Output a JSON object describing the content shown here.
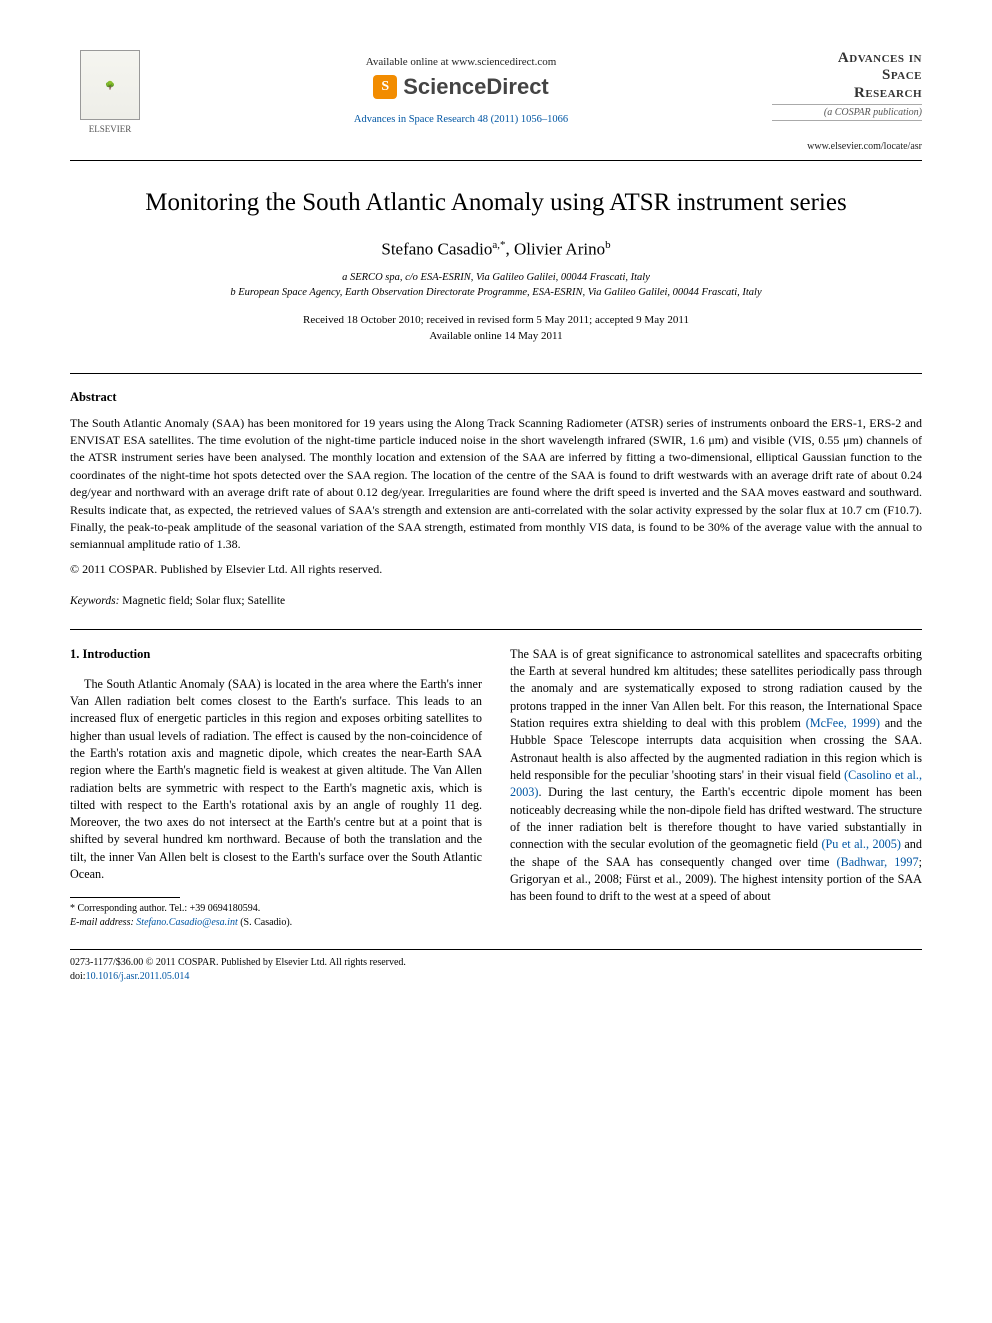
{
  "header": {
    "elsevier_label": "ELSEVIER",
    "available_online": "Available online at www.sciencedirect.com",
    "sciencedirect": "ScienceDirect",
    "journal_ref": "Advances in Space Research 48 (2011) 1056–1066",
    "journal_title_l1": "Advances in",
    "journal_title_l2": "Space",
    "journal_title_l3": "Research",
    "cospar": "(a COSPAR publication)",
    "journal_url": "www.elsevier.com/locate/asr"
  },
  "article": {
    "title": "Monitoring the South Atlantic Anomaly using ATSR instrument series",
    "authors_html": "Stefano Casadio",
    "author1": "Stefano Casadio",
    "author1_sup": "a,*",
    "author2": "Olivier Arino",
    "author2_sup": "b",
    "aff_a": "a SERCO spa, c/o ESA-ESRIN, Via Galileo Galilei, 00044 Frascati, Italy",
    "aff_b": "b European Space Agency, Earth Observation Directorate Programme, ESA-ESRIN, Via Galileo Galilei, 00044 Frascati, Italy",
    "dates_l1": "Received 18 October 2010; received in revised form 5 May 2011; accepted 9 May 2011",
    "dates_l2": "Available online 14 May 2011"
  },
  "abstract": {
    "heading": "Abstract",
    "text": "The South Atlantic Anomaly (SAA) has been monitored for 19 years using the Along Track Scanning Radiometer (ATSR) series of instruments onboard the ERS-1, ERS-2 and ENVISAT ESA satellites. The time evolution of the night-time particle induced noise in the short wavelength infrared (SWIR, 1.6 μm) and visible (VIS, 0.55 μm) channels of the ATSR instrument series have been analysed. The monthly location and extension of the SAA are inferred by fitting a two-dimensional, elliptical Gaussian function to the coordinates of the night-time hot spots detected over the SAA region. The location of the centre of the SAA is found to drift westwards with an average drift rate of about 0.24 deg/year and northward with an average drift rate of about 0.12 deg/year. Irregularities are found where the drift speed is inverted and the SAA moves eastward and southward. Results indicate that, as expected, the retrieved values of SAA's strength and extension are anti-correlated with the solar activity expressed by the solar flux at 10.7 cm (F10.7). Finally, the peak-to-peak amplitude of the seasonal variation of the SAA strength, estimated from monthly VIS data, is found to be 30% of the average value with the annual to semiannual amplitude ratio of 1.38.",
    "copyright": "© 2011 COSPAR. Published by Elsevier Ltd. All rights reserved."
  },
  "keywords": {
    "label": "Keywords:",
    "values": "Magnetic field; Solar flux; Satellite"
  },
  "intro": {
    "heading": "1. Introduction",
    "col1": "The South Atlantic Anomaly (SAA) is located in the area where the Earth's inner Van Allen radiation belt comes closest to the Earth's surface. This leads to an increased flux of energetic particles in this region and exposes orbiting satellites to higher than usual levels of radiation. The effect is caused by the non-coincidence of the Earth's rotation axis and magnetic dipole, which creates the near-Earth SAA region where the Earth's magnetic field is weakest at given altitude. The Van Allen radiation belts are symmetric with respect to the Earth's magnetic axis, which is tilted with respect to the Earth's rotational axis by an angle of roughly 11 deg. Moreover, the two axes do not intersect at the Earth's centre but at a point that is shifted by several hundred km northward. Because of both the translation and the tilt, the inner Van Allen belt is closest to the Earth's surface over the South Atlantic Ocean.",
    "col2_a": "The SAA is of great significance to astronomical satellites and spacecrafts orbiting the Earth at several hundred km altitudes; these satellites periodically pass through the anomaly and are systematically exposed to strong radiation caused by the protons trapped in the inner Van Allen belt. For this reason, the International Space Station requires extra shielding to deal with this problem ",
    "cite1": "(McFee, 1999)",
    "col2_b": " and the Hubble Space Telescope interrupts data acquisition when crossing the SAA. Astronaut health is also affected by the augmented radiation in this region which is held responsible for the peculiar 'shooting stars' in their visual field ",
    "cite2": "(Casolino et al., 2003)",
    "col2_c": ". During the last century, the Earth's eccentric dipole moment has been noticeably decreasing while the non-dipole field has drifted westward. The structure of the inner radiation belt is therefore thought to have varied substantially in connection with the secular evolution of the geomagnetic field ",
    "cite3": "(Pu et al., 2005)",
    "col2_d": " and the shape of the SAA has consequently changed over time ",
    "cite4": "(Badhwar, 1997",
    "col2_e": "; Grigoryan et al., 2008; Fürst et al., 2009). The highest intensity portion of the SAA has been found to drift to the west at a speed of about"
  },
  "corr": {
    "label": "* Corresponding author. Tel.: +39 0694180594.",
    "email_label": "E-mail address:",
    "email": "Stefano.Casadio@esa.int",
    "name": "(S. Casadio)."
  },
  "footer": {
    "line1": "0273-1177/$36.00 © 2011 COSPAR. Published by Elsevier Ltd. All rights reserved.",
    "doi_label": "doi:",
    "doi": "10.1016/j.asr.2011.05.014"
  }
}
